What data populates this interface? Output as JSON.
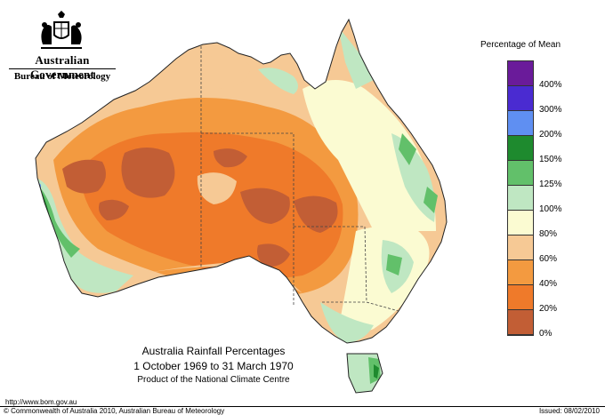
{
  "header": {
    "government": "Australian Government",
    "bureau": "Bureau of Meteorology"
  },
  "legend": {
    "title": "Percentage of Mean",
    "items": [
      {
        "label": "",
        "color": "#6a1b9a"
      },
      {
        "label": "400%",
        "color": "#4a2bd1"
      },
      {
        "label": "300%",
        "color": "#5f8ff2"
      },
      {
        "label": "200%",
        "color": "#1e8a2e"
      },
      {
        "label": "150%",
        "color": "#62c06a"
      },
      {
        "label": "125%",
        "color": "#bfe7c2"
      },
      {
        "label": "100%",
        "color": "#fbfbd2"
      },
      {
        "label": "80%",
        "color": "#f6c995"
      },
      {
        "label": "60%",
        "color": "#f39a40"
      },
      {
        "label": "40%",
        "color": "#ef7a2a"
      },
      {
        "label": "20%",
        "color": "#c25e35"
      },
      {
        "label": "0%",
        "color": ""
      }
    ]
  },
  "map": {
    "title_line1": "Australia Rainfall Percentages",
    "title_line2": "1 October 1969 to 31 March 1970",
    "title_line3": "Product of the National Climate Centre"
  },
  "footer": {
    "url": "http://www.bom.gov.au",
    "copyright": "© Commonwealth of Australia 2010, Australian Bureau of Meteorology",
    "issued": "Issued: 08/02/2010"
  },
  "colors": {
    "border": "#222222",
    "state_border": "#444444"
  }
}
